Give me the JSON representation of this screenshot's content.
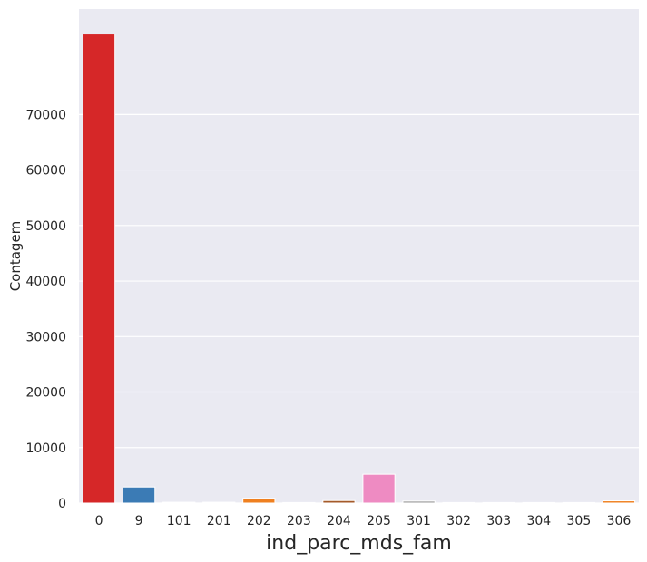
{
  "chart_data": {
    "type": "bar",
    "title": "",
    "xlabel": "ind_parc_mds_fam",
    "ylabel": "Contagem",
    "categories": [
      "0",
      "9",
      "101",
      "201",
      "202",
      "203",
      "204",
      "205",
      "301",
      "302",
      "303",
      "304",
      "305",
      "306"
    ],
    "values": [
      84500,
      2900,
      150,
      150,
      850,
      100,
      450,
      5200,
      350,
      100,
      100,
      100,
      100,
      400
    ],
    "yticks": [
      0,
      10000,
      20000,
      30000,
      40000,
      50000,
      60000,
      70000
    ],
    "ylim": [
      0,
      89000
    ],
    "grid": true,
    "colors": [
      "#d62728",
      "#3b7bb5",
      "#4c9a4a",
      "#8e5ba0",
      "#ef8020",
      "#e3d44a",
      "#a45a2a",
      "#ee8bc2",
      "#999999",
      "#d62728",
      "#3b7bb5",
      "#4c9a4a",
      "#8e5ba0",
      "#ef8020"
    ],
    "background": "#eaeaf2"
  }
}
